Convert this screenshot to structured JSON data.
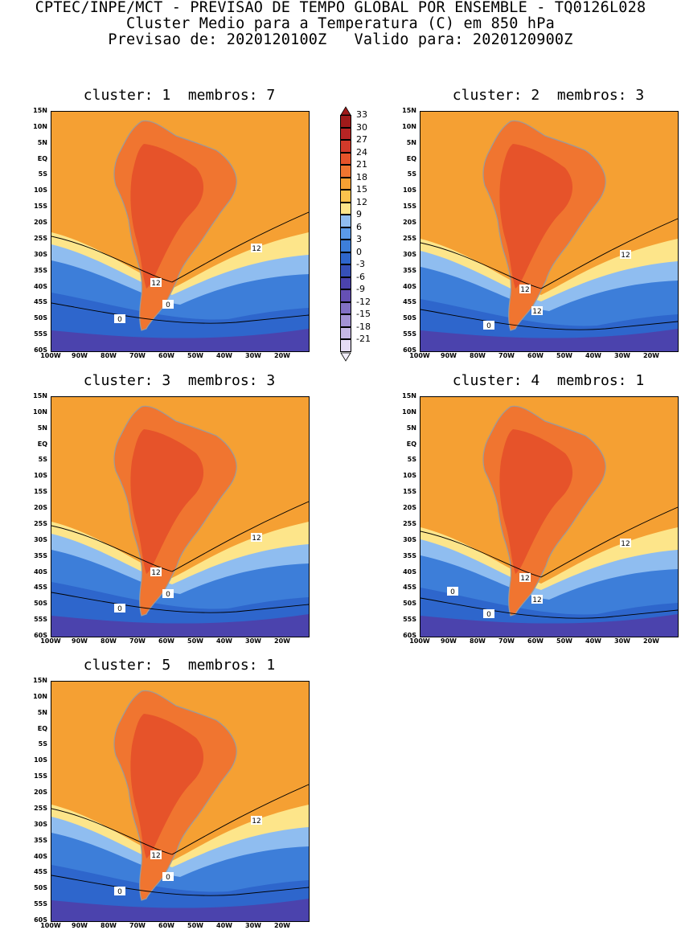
{
  "header": {
    "line1": "CPTEC/INPE/MCT - PREVISAO DE TEMPO GLOBAL POR ENSEMBLE - TQ0126L028",
    "line2": "Cluster Medio para a Temperatura (C) em 850 hPa",
    "line3": "Previsao de: 2020120100Z   Valido para: 2020120900Z"
  },
  "panels": [
    {
      "title": "cluster: 1  membros: 7",
      "contour_labels": [
        "12",
        "12",
        "0",
        "0"
      ]
    },
    {
      "title": "cluster: 2  membros: 3",
      "contour_labels": [
        "12",
        "12",
        "12",
        "0"
      ]
    },
    {
      "title": "cluster: 3  membros: 3",
      "contour_labels": [
        "12",
        "12",
        "0",
        "0"
      ]
    },
    {
      "title": "cluster: 4  membros: 1",
      "contour_labels": [
        "12",
        "12",
        "12",
        "0",
        "0"
      ]
    },
    {
      "title": "cluster: 5  membros: 1",
      "contour_labels": [
        "12",
        "12",
        "0",
        "0"
      ]
    }
  ],
  "lat_labels": [
    "15N",
    "10N",
    "5N",
    "EQ",
    "5S",
    "10S",
    "15S",
    "20S",
    "25S",
    "30S",
    "35S",
    "40S",
    "45S",
    "50S",
    "55S",
    "60S"
  ],
  "lon_labels": [
    "100W",
    "90W",
    "80W",
    "70W",
    "60W",
    "50W",
    "40W",
    "30W",
    "20W"
  ],
  "legend": {
    "labels": [
      "33",
      "30",
      "27",
      "24",
      "21",
      "18",
      "15",
      "12",
      "9",
      "6",
      "3",
      "0",
      "-3",
      "-6",
      "-9",
      "-12",
      "-15",
      "-18",
      "-21"
    ],
    "colors": [
      "#a01a1a",
      "#b72424",
      "#d23a2a",
      "#e6532a",
      "#f07530",
      "#f5a033",
      "#fbc34d",
      "#fde58a",
      "#8fbdf0",
      "#5b9ae8",
      "#3d7ed9",
      "#2e66cc",
      "#3650b8",
      "#4b43ad",
      "#6550b5",
      "#8270c5",
      "#a392d5",
      "#c6b8e6",
      "#e5dcf5"
    ]
  },
  "colors": {
    "warm": "#f5a033",
    "hot": "#f07530",
    "hotter": "#e6532a",
    "pale": "#fde58a",
    "cool": "#8fbdf0",
    "blue": "#3d7ed9",
    "deep": "#2e66cc",
    "violet": "#4b43ad",
    "land_line": "#9b9b9b"
  }
}
